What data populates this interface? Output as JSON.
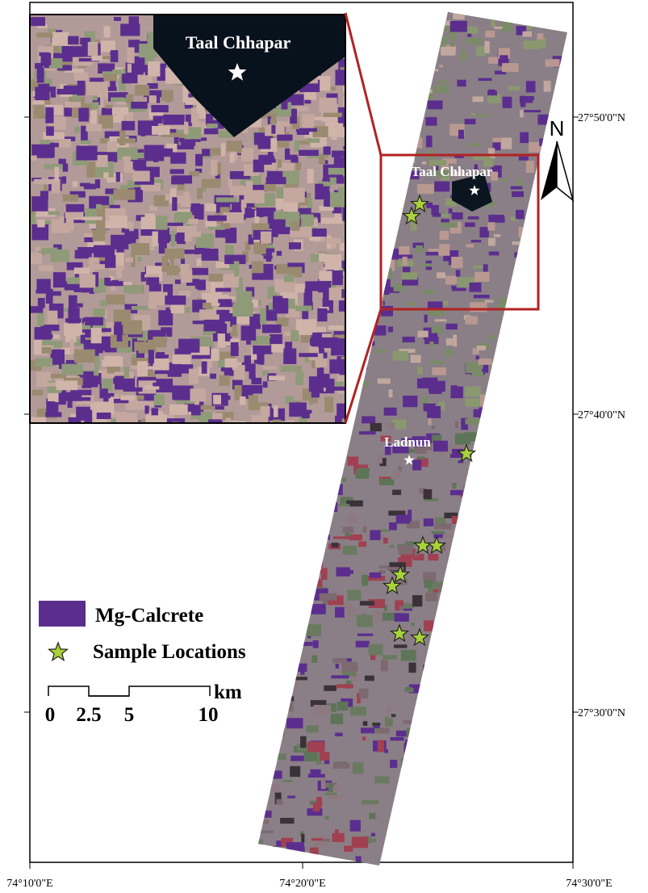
{
  "map": {
    "lon_labels": [
      "74°10'0\"E",
      "74°20'0\"E",
      "74°30'0\"E"
    ],
    "lat_labels": [
      "27°50'0\"N",
      "27°40'0\"N",
      "27°30'0\"N"
    ],
    "places": [
      "Taal Chhapar",
      "Ladnun"
    ],
    "inset_label": "Taal Chhapar",
    "north": "N",
    "legend": [
      "Mg-Calcrete",
      "Sample Locations"
    ],
    "scale_bar": {
      "labels": [
        "0",
        "2.5",
        "5",
        "10"
      ],
      "unit": "km"
    }
  }
}
